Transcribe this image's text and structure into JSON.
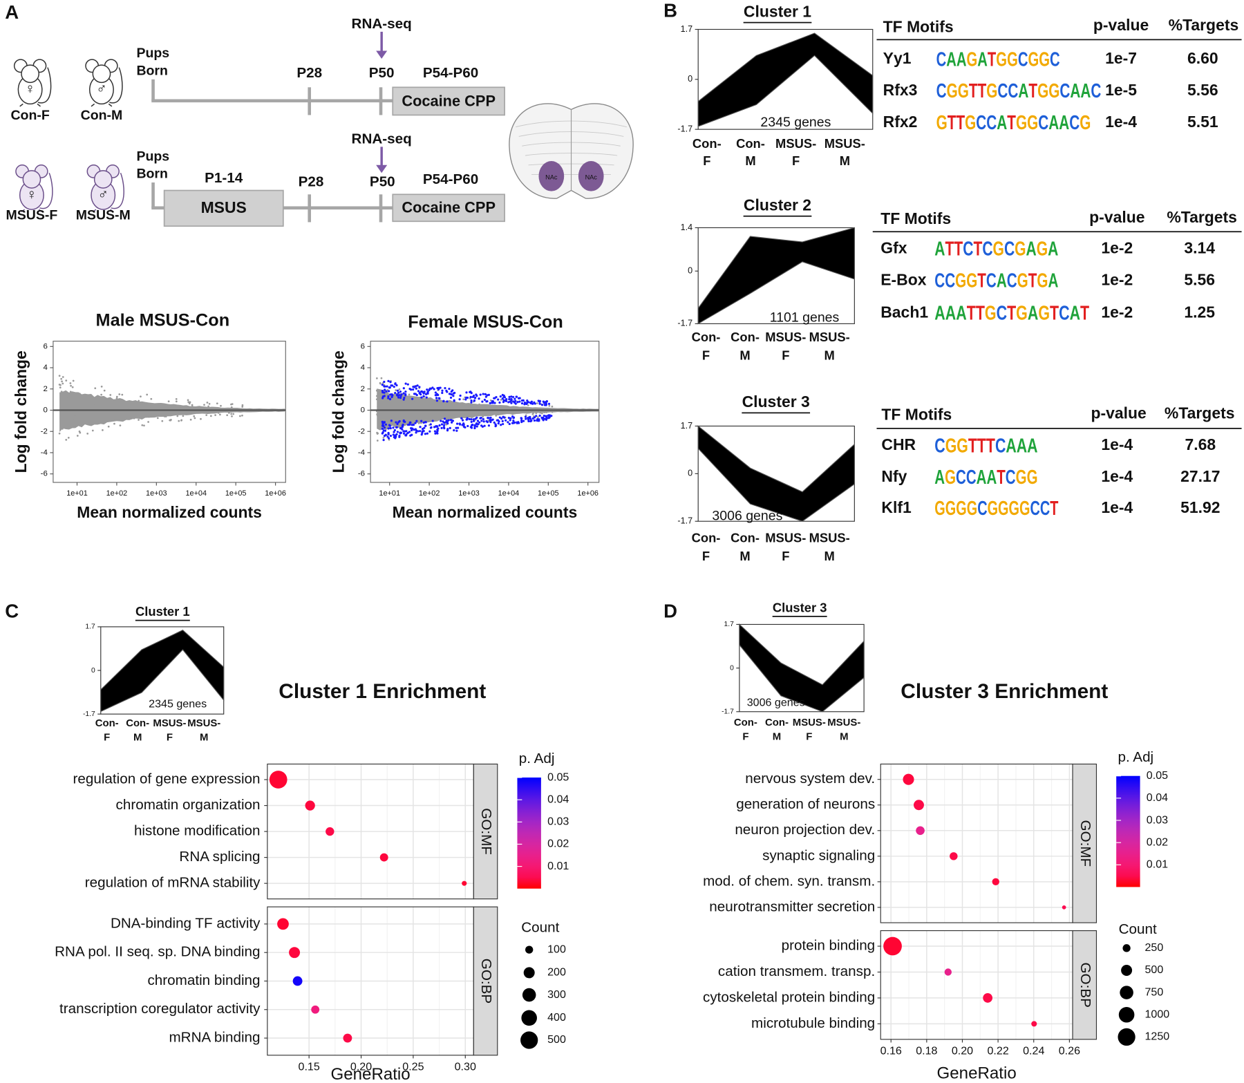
{
  "panel_labels": [
    "A",
    "B",
    "C",
    "D"
  ],
  "timeline": {
    "rows": [
      {
        "mice": [
          {
            "label": "Con-F",
            "symbol": "♀"
          },
          {
            "label": "Con-M",
            "symbol": "♂"
          }
        ],
        "born": [
          "Pups",
          "Born"
        ],
        "ticks": [
          "P28",
          "P50"
        ],
        "sequencing": "RNA-seq",
        "window": "P54-P60",
        "test": "Cocaine CPP"
      },
      {
        "mice": [
          {
            "label": "MSUS-F",
            "symbol": "♀"
          },
          {
            "label": "MSUS-M",
            "symbol": "♂"
          }
        ],
        "born": [
          "Pups",
          "Born"
        ],
        "stress_window": "P1-14",
        "stress": "MSUS",
        "ticks": [
          "P28",
          "P50"
        ],
        "sequencing": "RNA-seq",
        "window": "P54-P60",
        "test": "Cocaine CPP"
      }
    ],
    "region": [
      "NAc",
      "NAc"
    ]
  },
  "chart_data": [
    {
      "type": "ma",
      "title": "Male MSUS-Con",
      "xlabel": "Mean normalized counts",
      "ylabel": "Log fold change",
      "log_x": true,
      "xlim": [
        2.5,
        1800000
      ],
      "xticks": [
        {
          "value": 10,
          "label": "1e+01"
        },
        {
          "value": 100,
          "label": "1e+02"
        },
        {
          "value": 1000,
          "label": "1e+03"
        },
        {
          "value": 10000,
          "label": "1e+04"
        },
        {
          "value": 100000,
          "label": "1e+05"
        },
        {
          "value": 1000000,
          "label": "1e+06"
        }
      ],
      "ylim": [
        -6.8,
        6.5
      ],
      "yticks": [
        -6,
        -4,
        -2,
        0,
        2,
        4,
        6
      ]
    },
    {
      "type": "ma",
      "title": "Female MSUS-Con",
      "xlabel": "Mean normalized counts",
      "ylabel": "Log fold change",
      "log_x": true,
      "xlim": [
        3.3,
        1900000
      ],
      "xticks": [
        {
          "value": 10,
          "label": "1e+01"
        },
        {
          "value": 100,
          "label": "1e+02"
        },
        {
          "value": 1000,
          "label": "1e+03"
        },
        {
          "value": 10000,
          "label": "1e+04"
        },
        {
          "value": 100000,
          "label": "1e+05"
        },
        {
          "value": 1000000,
          "label": "1e+06"
        }
      ],
      "ylim": [
        -6.8,
        6.5
      ],
      "yticks": [
        -6,
        -4,
        -2,
        0,
        2,
        4,
        6
      ]
    },
    {
      "type": "band",
      "title": "Cluster 1",
      "categories": [
        "Con-F",
        "Con-M",
        "MSUS-F",
        "MSUS-M"
      ],
      "upper": [
        -0.75,
        0.81,
        1.57,
        0.13
      ],
      "lower": [
        -1.6,
        -0.86,
        0.81,
        -1.16
      ],
      "ylim": [
        -1.7,
        1.7
      ],
      "yticks": [
        1.7,
        0,
        -1.7
      ],
      "genes": "2345 genes",
      "motifs": {
        "headers": [
          "TF Motifs",
          "p-value",
          "%Targets"
        ],
        "rows": [
          [
            "Yy1",
            "CAAGATGGCGGC",
            "1e-7",
            "6.60"
          ],
          [
            "Rfx3",
            "CGGTTGCCATGGCAAC",
            "1e-5",
            "5.56"
          ],
          [
            "Rfx2",
            "GTTGCCATGGCAACG",
            "1e-4",
            "5.51"
          ]
        ]
      }
    },
    {
      "type": "band",
      "title": "Cluster 2",
      "categories": [
        "Con-F",
        "Con-M",
        "MSUS-F",
        "MSUS-M"
      ],
      "upper": [
        -1.2,
        1.12,
        0.94,
        1.4
      ],
      "lower": [
        -1.7,
        -0.72,
        0.3,
        -0.26
      ],
      "ylim": [
        -1.7,
        1.4
      ],
      "yticks": [
        1.4,
        0,
        -1.7
      ],
      "genes": "1101 genes",
      "motifs": {
        "headers": [
          "TF Motifs",
          "p-value",
          "%Targets"
        ],
        "rows": [
          [
            "Gfx",
            "ATTCTCGCGAGA",
            "1e-2",
            "3.14"
          ],
          [
            "E-Box",
            "CCGGTCACGTGA",
            "1e-2",
            "5.56"
          ],
          [
            "Bach1",
            "AAATTGCTGAGTCAT",
            "1e-2",
            "1.25"
          ]
        ]
      }
    },
    {
      "type": "band",
      "title": "Cluster 3",
      "categories": [
        "Con-F",
        "Con-M",
        "MSUS-F",
        "MSUS-M"
      ],
      "upper": [
        1.7,
        0.2,
        -0.65,
        1.05
      ],
      "lower": [
        0.9,
        -1.08,
        -1.7,
        -0.37
      ],
      "ylim": [
        -1.7,
        1.7
      ],
      "yticks": [
        1.7,
        0,
        -1.7
      ],
      "genes": "3006 genes",
      "motifs": {
        "headers": [
          "TF Motifs",
          "p-value",
          "%Targets"
        ],
        "rows": [
          [
            "CHR",
            "CGGTTTCAAA",
            "1e-4",
            "7.68"
          ],
          [
            "Nfy",
            "AGCCAATCGG",
            "1e-4",
            "27.17"
          ],
          [
            "Klf1",
            "GGGGCGGGGCCT",
            "1e-4",
            "51.92"
          ]
        ]
      }
    },
    {
      "type": "dot",
      "title": "Cluster 1 Enrichment",
      "xlabel": "GeneRatio",
      "xlim": [
        0.11,
        0.308
      ],
      "xticks": [
        0.15,
        {
          "value": 0.2,
          "label": "0.20"
        },
        0.25,
        {
          "value": 0.3,
          "label": "0.30"
        }
      ],
      "facets": [
        {
          "name": "GO:MF",
          "categories": [
            "regulation of gene expression",
            "chromatin organization",
            "histone modification",
            "RNA splicing",
            "regulation of mRNA stability"
          ],
          "x": [
            0.1205,
            0.151,
            0.17,
            0.222,
            0.299
          ],
          "count": [
            520,
            160,
            120,
            110,
            40
          ],
          "padj": [
            0.002,
            0.003,
            0.004,
            0.003,
            0.002
          ]
        },
        {
          "name": "GO:BP",
          "categories": [
            "DNA-binding TF activity",
            "RNA pol. II seq. sp. DNA binding",
            "chromatin binding",
            "transcription coregulator activity",
            "mRNA binding"
          ],
          "x": [
            0.125,
            0.136,
            0.139,
            0.156,
            0.187
          ],
          "count": [
            220,
            200,
            150,
            110,
            130
          ],
          "padj": [
            0.002,
            0.003,
            0.048,
            0.012,
            0.004
          ]
        }
      ],
      "color_title": "p. Adj",
      "color_lim": [
        0,
        0.05
      ],
      "color_ticks": [
        0.01,
        0.02,
        0.03,
        0.04,
        0.05
      ],
      "size_title": "Count",
      "size_ticks": [
        100,
        200,
        300,
        400,
        500
      ]
    },
    {
      "type": "dot",
      "title": "Cluster 3 Enrichment",
      "xlabel": "GeneRatio",
      "xlim": [
        0.1542,
        0.2618
      ],
      "xticks": [
        0.16,
        0.18,
        {
          "value": 0.2,
          "label": "0.20"
        },
        0.22,
        0.24,
        0.26
      ],
      "facets": [
        {
          "name": "GO:MF",
          "categories": [
            "nervous system dev.",
            "generation of neurons",
            "neuron projection dev.",
            "synaptic signaling",
            "mod. of chem. syn. transm.",
            "neurotransmitter secretion"
          ],
          "x": [
            0.1698,
            0.1756,
            0.1764,
            0.1951,
            0.2187,
            0.257
          ],
          "count": [
            506,
            437,
            313,
            258,
            210,
            65
          ],
          "padj": [
            0.003,
            0.004,
            0.015,
            0.004,
            0.003,
            0.005
          ]
        },
        {
          "name": "GO:BP",
          "categories": [
            "protein binding",
            "cation transmem. transp.",
            "cytoskeletal protein binding",
            "microtubule binding"
          ],
          "x": [
            0.1609,
            0.192,
            0.2142,
            0.2402
          ],
          "count": [
            1400,
            210,
            372,
            127
          ],
          "padj": [
            0.002,
            0.015,
            0.004,
            0.004
          ]
        }
      ],
      "color_title": "p. Adj",
      "color_lim": [
        0,
        0.05
      ],
      "color_ticks": [
        0.01,
        0.02,
        0.03,
        0.04,
        0.05
      ],
      "size_title": "Count",
      "size_ticks": [
        250,
        500,
        750,
        1000,
        1250
      ]
    }
  ]
}
